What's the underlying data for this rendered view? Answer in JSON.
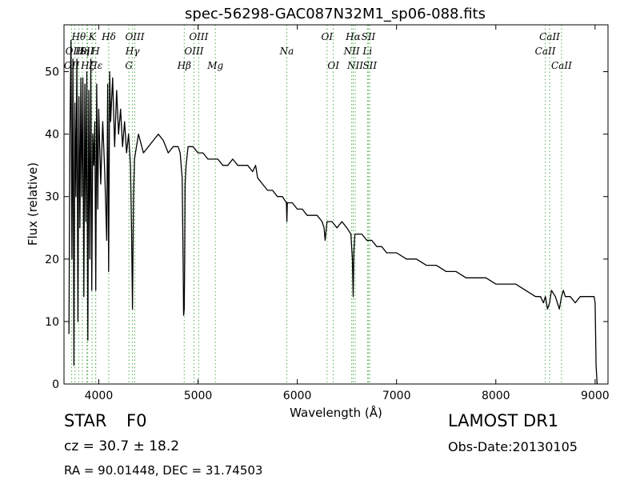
{
  "chart_data": {
    "type": "line",
    "title": "spec-56298-GAC087N32M1_sp06-088.fits",
    "xlabel": "Wavelength (Å)",
    "ylabel": "Flux (relative)",
    "xlim": [
      3650,
      9130
    ],
    "ylim": [
      0,
      57.5
    ],
    "xticks": [
      4000,
      5000,
      6000,
      7000,
      8000,
      9000
    ],
    "yticks": [
      0,
      10,
      20,
      30,
      40,
      50
    ],
    "grid": false,
    "line_color": "#000000",
    "marker_color": "#4daf4a",
    "series": [
      {
        "x": [
          3700,
          3710,
          3720,
          3730,
          3740,
          3750,
          3760,
          3770,
          3780,
          3790,
          3800,
          3810,
          3820,
          3830,
          3840,
          3850,
          3860,
          3870,
          3880,
          3890,
          3900,
          3910,
          3920,
          3930,
          3940,
          3950,
          3960,
          3970,
          3980,
          3990,
          4000,
          4020,
          4040,
          4060,
          4080,
          4090,
          4100,
          4110,
          4120,
          4140,
          4160,
          4180,
          4200,
          4220,
          4240,
          4260,
          4280,
          4300,
          4320,
          4330,
          4340,
          4350,
          4360,
          4380,
          4400,
          4450,
          4500,
          4550,
          4600,
          4650,
          4700,
          4750,
          4800,
          4820,
          4840,
          4850,
          4855,
          4861,
          4866,
          4870,
          4880,
          4900,
          4950,
          5000,
          5050,
          5100,
          5150,
          5200,
          5250,
          5300,
          5350,
          5400,
          5450,
          5500,
          5550,
          5580,
          5600,
          5650,
          5700,
          5750,
          5800,
          5850,
          5890,
          5895,
          5900,
          5950,
          6000,
          6050,
          6100,
          6150,
          6200,
          6250,
          6270,
          6280,
          6300,
          6350,
          6400,
          6450,
          6500,
          6540,
          6555,
          6563,
          6570,
          6580,
          6600,
          6650,
          6700,
          6750,
          6800,
          6850,
          6900,
          6950,
          7000,
          7100,
          7200,
          7300,
          7400,
          7500,
          7600,
          7700,
          7800,
          7900,
          8000,
          8100,
          8200,
          8300,
          8400,
          8450,
          8480,
          8500,
          8520,
          8542,
          8560,
          8600,
          8640,
          8662,
          8680,
          8700,
          8750,
          8800,
          8850,
          8900,
          8950,
          8990,
          9000,
          9010,
          9020
        ],
        "y": [
          8,
          40,
          55,
          20,
          52,
          3,
          45,
          30,
          52,
          10,
          46,
          25,
          49,
          30,
          49,
          14,
          48,
          26,
          50,
          7,
          47,
          20,
          52,
          15,
          40,
          35,
          42,
          15,
          48,
          28,
          44,
          32,
          42,
          34,
          23,
          48,
          18,
          50,
          42,
          49,
          38,
          47,
          40,
          44,
          38,
          42,
          37,
          40,
          35,
          25,
          12,
          30,
          36,
          38,
          40,
          37,
          38,
          39,
          40,
          39,
          37,
          38,
          38,
          37,
          33,
          20,
          11,
          12,
          20,
          32,
          35,
          38,
          38,
          37,
          37,
          36,
          36,
          36,
          35,
          35,
          36,
          35,
          35,
          35,
          34,
          35,
          33,
          32,
          31,
          31,
          30,
          30,
          29,
          26,
          29,
          29,
          28,
          28,
          27,
          27,
          27,
          26,
          25,
          23,
          26,
          26,
          25,
          26,
          25,
          24,
          20,
          14,
          21,
          24,
          24,
          24,
          23,
          23,
          22,
          22,
          21,
          21,
          21,
          20,
          20,
          19,
          19,
          18,
          18,
          17,
          17,
          17,
          16,
          16,
          16,
          15,
          14,
          14,
          13,
          14,
          12,
          13,
          15,
          14,
          12,
          14,
          15,
          14,
          14,
          13,
          14,
          14,
          14,
          14,
          13,
          3,
          0
        ]
      }
    ],
    "line_markers": [
      {
        "label": "OII",
        "x": 3727,
        "row": 3
      },
      {
        "label": "Hθ",
        "x": 3798,
        "row": 1
      },
      {
        "label": "OIII",
        "x": 3760,
        "row": 2
      },
      {
        "label": "Hη",
        "x": 3835,
        "row": 2
      },
      {
        "label": "Hζ",
        "x": 3889,
        "row": 3
      },
      {
        "label": "SII",
        "x": 3880,
        "row": 2
      },
      {
        "label": "Hε",
        "x": 3970,
        "row": 3
      },
      {
        "label": "K",
        "x": 3933,
        "row": 1
      },
      {
        "label": "H",
        "x": 3968,
        "row": 2
      },
      {
        "label": "Hδ",
        "x": 4101,
        "row": 1
      },
      {
        "label": "Hγ",
        "x": 4340,
        "row": 2
      },
      {
        "label": "G",
        "x": 4304,
        "row": 3
      },
      {
        "label": "OIII",
        "x": 4363,
        "row": 1
      },
      {
        "label": "Hβ",
        "x": 4861,
        "row": 3
      },
      {
        "label": "OIII",
        "x": 4959,
        "row": 2
      },
      {
        "label": "OIII",
        "x": 5007,
        "row": 1
      },
      {
        "label": "Mg",
        "x": 5175,
        "row": 3
      },
      {
        "label": "Na",
        "x": 5894,
        "row": 2
      },
      {
        "label": "OI",
        "x": 6300,
        "row": 1
      },
      {
        "label": "OI",
        "x": 6363,
        "row": 3
      },
      {
        "label": "NII",
        "x": 6548,
        "row": 2
      },
      {
        "label": "NII",
        "x": 6583,
        "row": 3
      },
      {
        "label": "Hα",
        "x": 6563,
        "row": 1
      },
      {
        "label": "Li",
        "x": 6707,
        "row": 2
      },
      {
        "label": "SII",
        "x": 6716,
        "row": 1
      },
      {
        "label": "SII",
        "x": 6731,
        "row": 3
      },
      {
        "label": "CaII",
        "x": 8498,
        "row": 2
      },
      {
        "label": "CaII",
        "x": 8542,
        "row": 1
      },
      {
        "label": "CaII",
        "x": 8662,
        "row": 3
      }
    ]
  },
  "info": {
    "class_label": "STAR",
    "subclass": "F0",
    "survey": "LAMOST DR1",
    "cz": "cz = 30.7 ± 18.2",
    "obs_date": "Obs-Date:20130105",
    "coords": "RA = 90.01448, DEC = 31.74503"
  }
}
